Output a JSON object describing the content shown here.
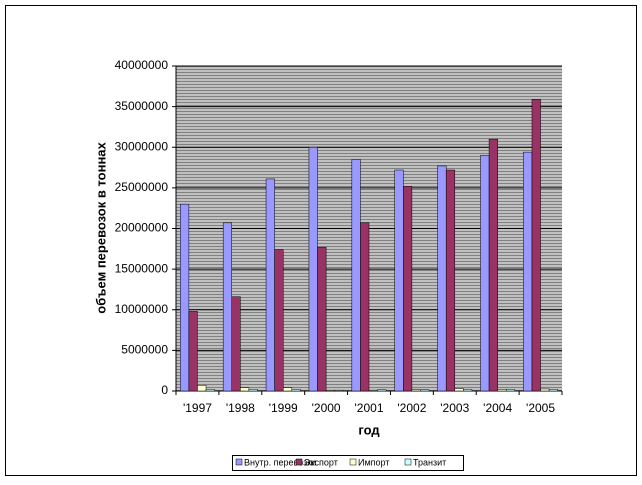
{
  "chart_data": {
    "type": "bar",
    "x_label": "год",
    "y_label": "объем перевозок в тоннах",
    "categories": [
      "'1997",
      "'1998",
      "'1999",
      "'2000",
      "'2001",
      "'2002",
      "'2003",
      "'2004",
      "'2005"
    ],
    "series": [
      {
        "name": "Внутр. перевозки",
        "color": "#9999ff",
        "values": [
          23000000,
          20700000,
          26100000,
          30000000,
          28500000,
          27200000,
          27700000,
          29000000,
          29400000
        ]
      },
      {
        "name": "Экспорт",
        "color": "#993366",
        "values": [
          9800000,
          11600000,
          17400000,
          17700000,
          20700000,
          25200000,
          27200000,
          31000000,
          35900000
        ]
      },
      {
        "name": "Импорт",
        "color": "#ffffcc",
        "values": [
          700000,
          400000,
          400000,
          100000,
          100000,
          150000,
          300000,
          200000,
          250000
        ]
      },
      {
        "name": "Транзит",
        "color": "#ccffff",
        "values": [
          200000,
          200000,
          200000,
          100000,
          150000,
          150000,
          200000,
          200000,
          200000
        ]
      }
    ],
    "ylim": [
      0,
      40000000
    ],
    "yticks": [
      0,
      5000000,
      10000000,
      15000000,
      20000000,
      25000000,
      30000000,
      35000000,
      40000000
    ],
    "grid": true
  }
}
